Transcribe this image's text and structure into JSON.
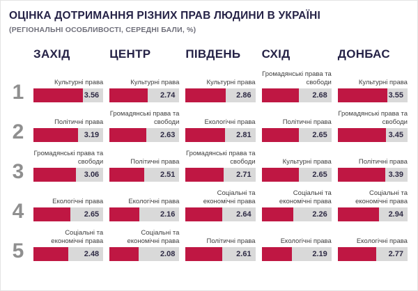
{
  "rank_numbers": [
    "1",
    "2",
    "3",
    "4",
    "5"
  ],
  "colors": {
    "bar_fill": "#bf1743",
    "bar_track": "#d9d9d9",
    "title": "#262347",
    "rank_number": "#8f8f8f",
    "value_text": "#2e2b45",
    "label_text": "#3d3d3d",
    "subtitle": "#6f6f7a"
  },
  "chart_data": {
    "type": "bar",
    "title": "ОЦІНКА ДОТРИМАННЯ РІЗНИХ ПРАВ ЛЮДИНИ В УКРАЇНІ",
    "subtitle": "(РЕГІОНАЛЬНІ ОСОБЛИВОСТІ, СЕРЕДНІ БАЛИ, %)",
    "scale_max": 5,
    "legend_position": "none",
    "grid": false,
    "regions": [
      {
        "name": "ЗАХІД",
        "ranks": [
          {
            "rank": 1,
            "label": "Культурні права",
            "value": "3.56"
          },
          {
            "rank": 2,
            "label": "Політичні права",
            "value": "3.19"
          },
          {
            "rank": 3,
            "label": "Громадянські права та свободи",
            "value": "3.06"
          },
          {
            "rank": 4,
            "label": "Екологічні права",
            "value": "2.65"
          },
          {
            "rank": 5,
            "label": "Соціальні та економічні права",
            "value": "2.48"
          }
        ]
      },
      {
        "name": "ЦЕНТР",
        "ranks": [
          {
            "rank": 1,
            "label": "Культурні права",
            "value": "2.74"
          },
          {
            "rank": 2,
            "label": "Громадянські права та свободи",
            "value": "2.63"
          },
          {
            "rank": 3,
            "label": "Політичні права",
            "value": "2.51"
          },
          {
            "rank": 4,
            "label": "Екологічні права",
            "value": "2.16"
          },
          {
            "rank": 5,
            "label": "Соціальні та економічні права",
            "value": "2.08"
          }
        ]
      },
      {
        "name": "ПІВДЕНЬ",
        "ranks": [
          {
            "rank": 1,
            "label": "Культурні права",
            "value": "2.86"
          },
          {
            "rank": 2,
            "label": "Екологічні права",
            "value": "2.81"
          },
          {
            "rank": 3,
            "label": "Громадянські права та свободи",
            "value": "2.71"
          },
          {
            "rank": 4,
            "label": "Соціальні та економічні права",
            "value": "2.64"
          },
          {
            "rank": 5,
            "label": "Політичні права",
            "value": "2.61"
          }
        ]
      },
      {
        "name": "СХІД",
        "ranks": [
          {
            "rank": 1,
            "label": "Громадянські права та свободи",
            "value": "2.68"
          },
          {
            "rank": 2,
            "label": "Політичні права",
            "value": "2.65"
          },
          {
            "rank": 3,
            "label": "Культурні права",
            "value": "2.65"
          },
          {
            "rank": 4,
            "label": "Соціальні та економічні права",
            "value": "2.26"
          },
          {
            "rank": 5,
            "label": "Екологічні права",
            "value": "2.19"
          }
        ]
      },
      {
        "name": "ДОНБАС",
        "ranks": [
          {
            "rank": 1,
            "label": "Культурні права",
            "value": "3.55"
          },
          {
            "rank": 2,
            "label": "Громадянські права та свободи",
            "value": "3.45"
          },
          {
            "rank": 3,
            "label": "Політичні права",
            "value": "3.39"
          },
          {
            "rank": 4,
            "label": "Соціальні та економічні права",
            "value": "2.94"
          },
          {
            "rank": 5,
            "label": "Екологічні права",
            "value": "2.77"
          }
        ]
      }
    ]
  }
}
